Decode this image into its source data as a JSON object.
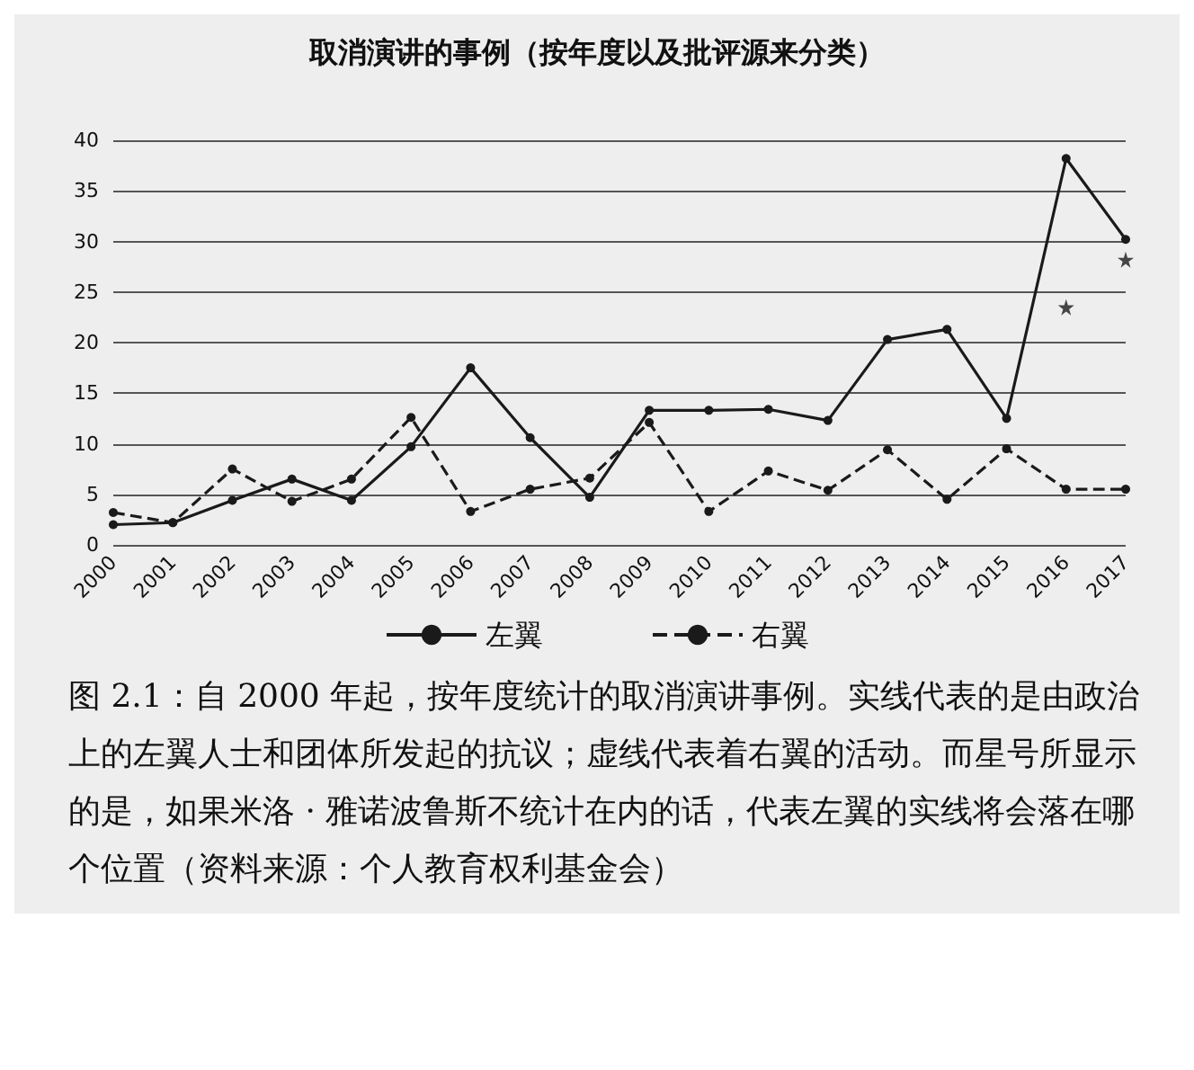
{
  "chart_data": {
    "type": "line",
    "title": "取消演讲的事例（按年度以及批评源来分类）",
    "categories": [
      "2000",
      "2001",
      "2002",
      "2003",
      "2004",
      "2005",
      "2006",
      "2007",
      "2008",
      "2009",
      "2010",
      "2011",
      "2012",
      "2013",
      "2014",
      "2015",
      "2016",
      "2017"
    ],
    "series": [
      {
        "name": "左翼",
        "color": "#1a1a1a",
        "line_style": "solid",
        "values": [
          2,
          2.2,
          4.4,
          6.5,
          4.4,
          9.7,
          17.5,
          10.6,
          4.7,
          13.3,
          13.3,
          13.4,
          12.3,
          20.3,
          21.3,
          12.5,
          38.2,
          30.2
        ]
      },
      {
        "name": "右翼",
        "color": "#1a1a1a",
        "line_style": "dashed",
        "values": [
          3.2,
          2.2,
          7.5,
          4.3,
          6.5,
          12.6,
          3.3,
          5.5,
          6.6,
          12.1,
          3.3,
          7.3,
          5.4,
          9.4,
          4.5,
          9.5,
          5.5,
          5.5
        ]
      },
      {
        "type": "scatter",
        "color": "#1a1a1a",
        "marker": "star",
        "values": [
          null,
          null,
          null,
          null,
          null,
          null,
          null,
          null,
          null,
          null,
          null,
          null,
          null,
          null,
          null,
          null,
          23.5,
          28.2
        ]
      }
    ],
    "ylim": [
      0,
      40
    ],
    "yticks": [
      0,
      5,
      10,
      15,
      20,
      25,
      30,
      35,
      40
    ],
    "grid": "y",
    "marker": "circle",
    "legend": "bottom",
    "annotations": [
      "图 2.1：自 2000 年起，按年度统计的取消演讲事例。实线代表的是由政治上的左翼人士和团体所发起的抗议；虚线代表着右翼的活动。而星号所显示的是，如果米洛 · 雅诺波鲁斯不统计在内的话，代表左翼的实线将会落在哪个位置（资料来源：个人教育权利基金会）"
    ]
  }
}
